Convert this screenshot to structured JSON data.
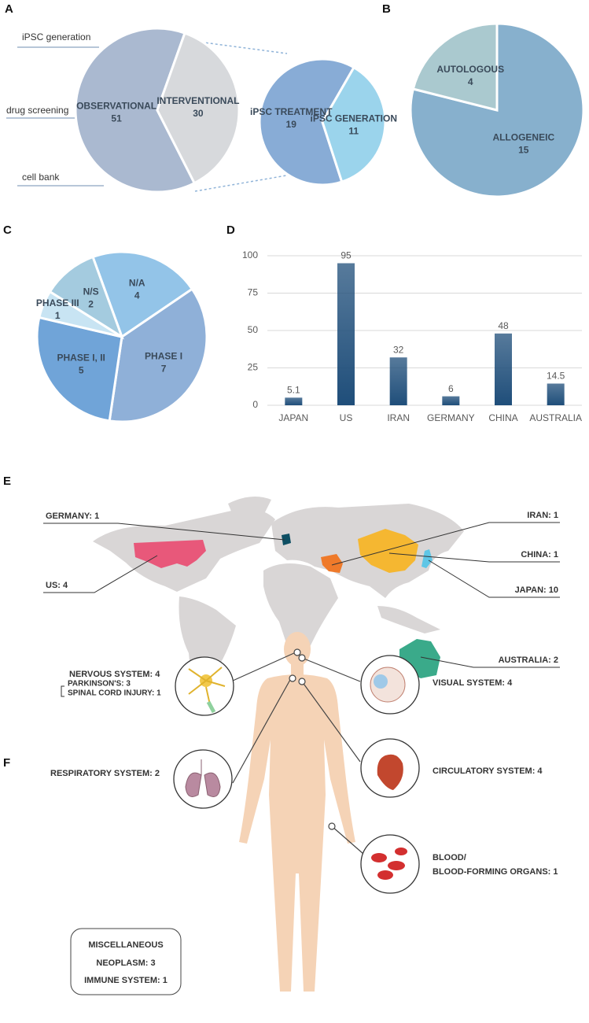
{
  "chart_data": [
    {
      "type": "pie",
      "panel": "A",
      "categories": [
        "OBSERVATIONAL",
        "INTERVENTIONAL"
      ],
      "values": [
        51,
        30
      ],
      "colors": [
        "#aab9d0",
        "#d7d9dc"
      ],
      "annotations": [
        "iPSC generation",
        "drug screening",
        "cell bank"
      ]
    },
    {
      "type": "pie",
      "categories": [
        "iPSC TREATMENT",
        "iPSC GENERATION"
      ],
      "values": [
        19,
        11
      ],
      "colors": [
        "#88acd6",
        "#9bd4ec"
      ]
    },
    {
      "type": "pie",
      "panel": "B",
      "categories": [
        "ALLOGENEIC",
        "AUTOLOGOUS"
      ],
      "values": [
        15,
        4
      ],
      "colors": [
        "#87b0cd",
        "#aac9cf"
      ]
    },
    {
      "type": "pie",
      "panel": "C",
      "categories": [
        "N/A",
        "PHASE I",
        "PHASE I, II",
        "PHASE III",
        "N/S"
      ],
      "values": [
        4,
        7,
        5,
        1,
        2
      ],
      "colors": [
        "#93c4e8",
        "#8fb0d8",
        "#70a4d8",
        "#c8e4f3",
        "#a4cbdf"
      ]
    },
    {
      "type": "bar",
      "panel": "D",
      "categories": [
        "JAPAN",
        "US",
        "IRAN",
        "GERMANY",
        "CHINA",
        "AUSTRALIA"
      ],
      "values": [
        5.1,
        95,
        32,
        6,
        48,
        14.5
      ],
      "color": "#1f4e7a",
      "ylim": [
        0,
        100
      ],
      "yticks": [
        0,
        25,
        50,
        75,
        100
      ],
      "grid": true
    }
  ],
  "map": {
    "panel": "E",
    "countries": [
      {
        "label": "GERMANY: 1",
        "color": "#0e4f63"
      },
      {
        "label": "US: 4",
        "color": "#e8587a"
      },
      {
        "label": "IRAN: 1",
        "color": "#ef7a2a"
      },
      {
        "label": "CHINA: 1",
        "color": "#f5b731"
      },
      {
        "label": "JAPAN: 10",
        "color": "#5fc6e6"
      },
      {
        "label": "AUSTRALIA: 2",
        "color": "#3aaa8a"
      }
    ]
  },
  "systems": {
    "panel": "F",
    "nervous": {
      "label": "NERVOUS SYSTEM: 4",
      "details": [
        "PARKINSON'S: 3",
        "SPINAL CORD INJURY: 1"
      ]
    },
    "respiratory": "RESPIRATORY SYSTEM: 2",
    "visual": "VISUAL SYSTEM: 4",
    "circulatory": "CIRCULATORY SYSTEM: 4",
    "blood": [
      "BLOOD/",
      "BLOOD-FORMING ORGANS: 1"
    ],
    "miscellaneous": [
      "MISCELLANEOUS",
      "NEOPLASM: 3",
      "IMMUNE SYSTEM: 1"
    ]
  }
}
